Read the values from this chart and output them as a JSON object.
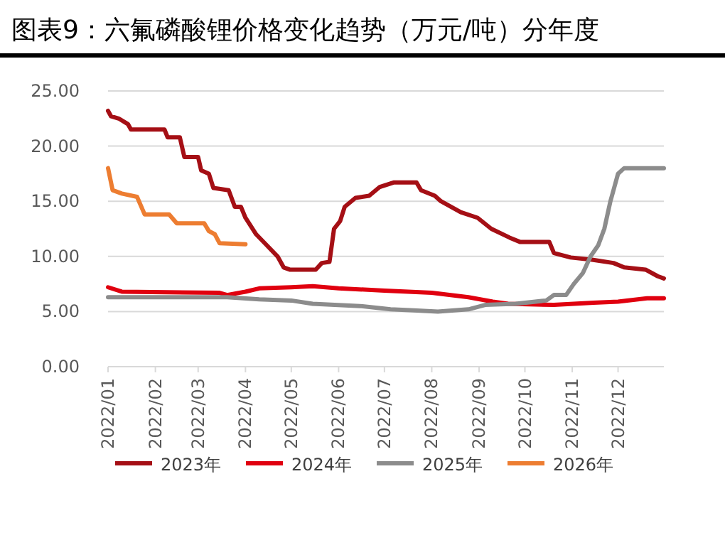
{
  "chart_data": {
    "type": "line",
    "title": "图表9：六氟磷酸锂价格变化趋势（万元/吨）分年度",
    "xlim": [
      "2022-01-01",
      "2022-12-31"
    ],
    "xticks": [
      {
        "value": "2022-01-01",
        "label": "2022/01"
      },
      {
        "value": "2022-02-01",
        "label": "2022/02"
      },
      {
        "value": "2022-03-01",
        "label": "2022/03"
      },
      {
        "value": "2022-04-01",
        "label": "2022/04"
      },
      {
        "value": "2022-05-01",
        "label": "2022/05"
      },
      {
        "value": "2022-06-01",
        "label": "2022/06"
      },
      {
        "value": "2022-07-01",
        "label": "2022/07"
      },
      {
        "value": "2022-08-01",
        "label": "2022/08"
      },
      {
        "value": "2022-09-01",
        "label": "2022/09"
      },
      {
        "value": "2022-10-01",
        "label": "2022/10"
      },
      {
        "value": "2022-11-01",
        "label": "2022/11"
      },
      {
        "value": "2022-12-01",
        "label": "2022/12"
      }
    ],
    "ylim": [
      0,
      25
    ],
    "yticks": [
      {
        "value": 0,
        "label": "0.00"
      },
      {
        "value": 5,
        "label": "5.00"
      },
      {
        "value": 10,
        "label": "10.00"
      },
      {
        "value": 15,
        "label": "15.00"
      },
      {
        "value": 20,
        "label": "20.00"
      },
      {
        "value": 25,
        "label": "25.00"
      }
    ],
    "grid": "y",
    "legend": "bottom",
    "series": [
      {
        "name": "2023年",
        "color": "#a50f15",
        "x": [
          "2022-01-01",
          "2022-01-03",
          "2022-01-08",
          "2022-01-14",
          "2022-01-16",
          "2022-02-07",
          "2022-02-09",
          "2022-02-17",
          "2022-02-20",
          "2022-03-01",
          "2022-03-03",
          "2022-03-08",
          "2022-03-11",
          "2022-03-21",
          "2022-03-25",
          "2022-03-29",
          "2022-04-01",
          "2022-04-08",
          "2022-04-15",
          "2022-04-22",
          "2022-04-26",
          "2022-04-30",
          "2022-05-17",
          "2022-05-21",
          "2022-05-26",
          "2022-05-29",
          "2022-06-02",
          "2022-06-05",
          "2022-06-12",
          "2022-06-21",
          "2022-06-28",
          "2022-07-07",
          "2022-07-22",
          "2022-07-25",
          "2022-08-03",
          "2022-08-07",
          "2022-08-20",
          "2022-08-31",
          "2022-09-09",
          "2022-09-21",
          "2022-09-28",
          "2022-10-17",
          "2022-10-20",
          "2022-10-31",
          "2022-11-14",
          "2022-11-28",
          "2022-12-05",
          "2022-12-19",
          "2022-12-27",
          "2022-12-31"
        ],
        "values": [
          23.2,
          22.7,
          22.5,
          22.0,
          21.5,
          21.5,
          20.8,
          20.8,
          19.0,
          19.0,
          17.8,
          17.5,
          16.2,
          16.0,
          14.5,
          14.5,
          13.5,
          12.0,
          11.0,
          10.0,
          9.0,
          8.8,
          8.8,
          9.4,
          9.5,
          12.5,
          13.2,
          14.5,
          15.3,
          15.5,
          16.3,
          16.7,
          16.7,
          16.0,
          15.5,
          15.0,
          14.0,
          13.5,
          12.5,
          11.7,
          11.3,
          11.3,
          10.3,
          9.9,
          9.7,
          9.4,
          9.0,
          8.8,
          8.2,
          8.0
        ]
      },
      {
        "name": "2024年",
        "color": "#e0000f",
        "x": [
          "2022-01-01",
          "2022-01-10",
          "2022-03-15",
          "2022-03-20",
          "2022-04-01",
          "2022-04-10",
          "2022-05-01",
          "2022-05-15",
          "2022-06-01",
          "2022-07-01",
          "2022-08-01",
          "2022-08-25",
          "2022-09-10",
          "2022-09-20",
          "2022-10-20",
          "2022-11-15",
          "2022-12-01",
          "2022-12-20",
          "2022-12-31"
        ],
        "values": [
          7.2,
          6.8,
          6.7,
          6.5,
          6.8,
          7.1,
          7.2,
          7.3,
          7.1,
          6.9,
          6.7,
          6.3,
          5.9,
          5.7,
          5.6,
          5.8,
          5.9,
          6.2,
          6.2
        ]
      },
      {
        "name": "2025年",
        "color": "#8c8c8c",
        "x": [
          "2022-01-01",
          "2022-03-20",
          "2022-04-10",
          "2022-05-01",
          "2022-05-15",
          "2022-06-15",
          "2022-07-05",
          "2022-07-20",
          "2022-08-05",
          "2022-08-25",
          "2022-09-05",
          "2022-09-25",
          "2022-10-15",
          "2022-10-20",
          "2022-10-28",
          "2022-11-02",
          "2022-11-08",
          "2022-11-13",
          "2022-11-18",
          "2022-11-22",
          "2022-11-26",
          "2022-11-28",
          "2022-12-01",
          "2022-12-05",
          "2022-12-31"
        ],
        "values": [
          6.3,
          6.3,
          6.1,
          6.0,
          5.7,
          5.5,
          5.2,
          5.1,
          5.0,
          5.2,
          5.6,
          5.7,
          6.0,
          6.5,
          6.5,
          7.5,
          8.5,
          10.0,
          11.0,
          12.5,
          15.0,
          16.0,
          17.5,
          18.0,
          18.0
        ]
      },
      {
        "name": "2026年",
        "color": "#ed7d31",
        "x": [
          "2022-01-01",
          "2022-01-04",
          "2022-01-10",
          "2022-01-20",
          "2022-01-25",
          "2022-02-10",
          "2022-02-15",
          "2022-03-05",
          "2022-03-08",
          "2022-03-12",
          "2022-03-15",
          "2022-04-01"
        ],
        "values": [
          18.0,
          16.0,
          15.7,
          15.4,
          13.8,
          13.8,
          13.0,
          13.0,
          12.3,
          12.0,
          11.2,
          11.1
        ]
      }
    ]
  }
}
